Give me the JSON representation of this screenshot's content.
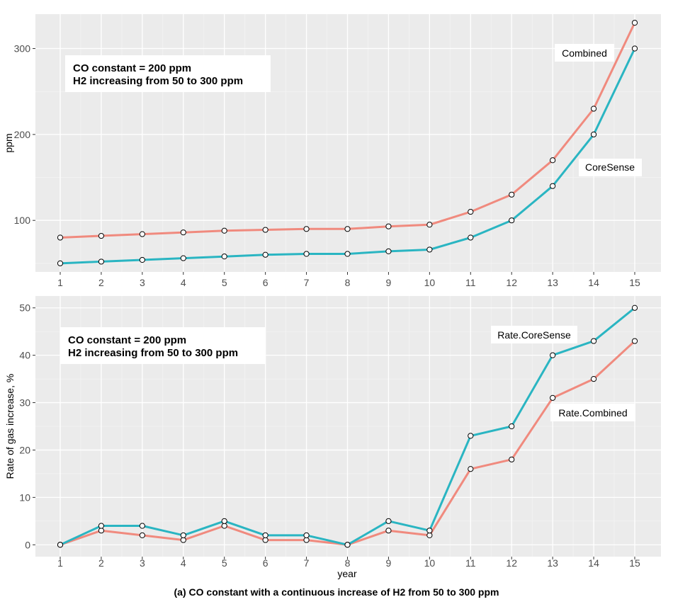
{
  "chart_data": [
    {
      "type": "line",
      "title": "",
      "xlabel": "",
      "ylabel": "ppm",
      "x": [
        1,
        2,
        3,
        4,
        5,
        6,
        7,
        8,
        9,
        10,
        11,
        12,
        13,
        14,
        15
      ],
      "x_ticks": [
        "1",
        "2",
        "3",
        "4",
        "5",
        "6",
        "7",
        "8",
        "9",
        "10",
        "11",
        "12",
        "13",
        "14",
        "15"
      ],
      "ylim": [
        40,
        340
      ],
      "y_ticks": [
        "100",
        "200",
        "300"
      ],
      "y_tick_values": [
        100,
        200,
        300
      ],
      "grid": true,
      "series": [
        {
          "name": "Combined",
          "color": "#F08A7E",
          "values": [
            80,
            82,
            84,
            86,
            88,
            89,
            90,
            90,
            93,
            95,
            110,
            130,
            170,
            230,
            330
          ]
        },
        {
          "name": "CoreSense",
          "color": "#2AB5C2",
          "values": [
            50,
            52,
            54,
            56,
            58,
            60,
            61,
            61,
            64,
            66,
            80,
            100,
            140,
            200,
            300
          ]
        }
      ],
      "annotation_lines": [
        "CO constant = 200 ppm",
        "H2 increasing from 50 to 300 ppm"
      ],
      "series_labels": [
        "Combined",
        "CoreSense"
      ]
    },
    {
      "type": "line",
      "title": "",
      "xlabel": "year",
      "ylabel": "Rate of gas increase, %",
      "x": [
        1,
        2,
        3,
        4,
        5,
        6,
        7,
        8,
        9,
        10,
        11,
        12,
        13,
        14,
        15
      ],
      "x_ticks": [
        "1",
        "2",
        "3",
        "4",
        "5",
        "6",
        "7",
        "8",
        "9",
        "10",
        "11",
        "12",
        "13",
        "14",
        "15"
      ],
      "ylim": [
        -2.5,
        52.5
      ],
      "y_ticks": [
        "0",
        "10",
        "20",
        "30",
        "40",
        "50"
      ],
      "y_tick_values": [
        0,
        10,
        20,
        30,
        40,
        50
      ],
      "grid": true,
      "series": [
        {
          "name": "Rate.Combined",
          "color": "#F08A7E",
          "values": [
            0,
            3,
            2,
            1,
            4,
            1,
            1,
            0,
            3,
            2,
            16,
            18,
            31,
            35,
            43
          ]
        },
        {
          "name": "Rate.CoreSense",
          "color": "#2AB5C2",
          "values": [
            0,
            4,
            4,
            2,
            5,
            2,
            2,
            0,
            5,
            3,
            23,
            25,
            40,
            43,
            50
          ]
        }
      ],
      "annotation_lines": [
        "CO constant = 200 ppm",
        "H2 increasing from 50 to 300 ppm"
      ],
      "series_labels": [
        "Rate.CoreSense",
        "Rate.Combined"
      ]
    }
  ],
  "caption": "(a) CO constant with a continuous increase of H2 from 50 to 300 ppm"
}
